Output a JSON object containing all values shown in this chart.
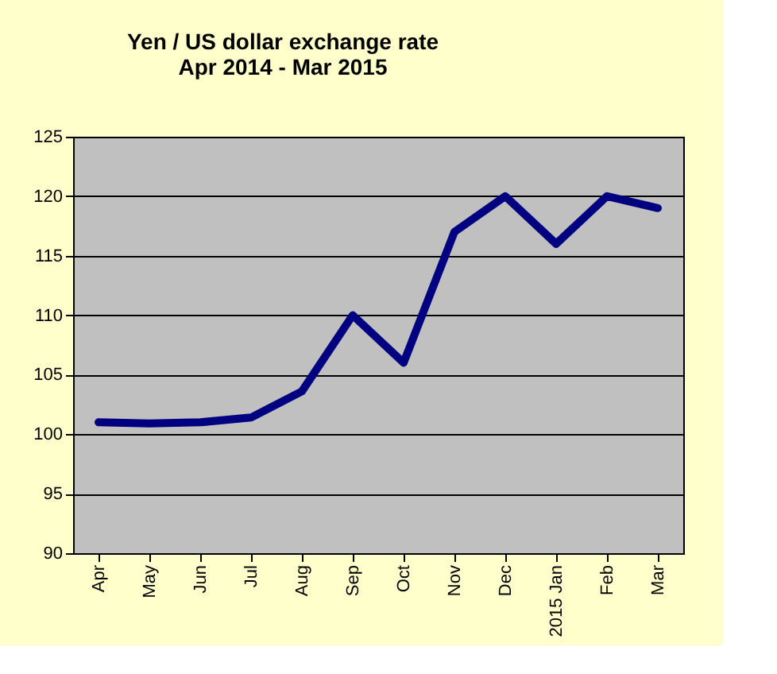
{
  "chart_data": {
    "type": "line",
    "title": "Yen / US dollar exchange rate\nApr 2014 - Mar 2015",
    "categories": [
      "Apr",
      "May",
      "Jun",
      "Jul",
      "Aug",
      "Sep",
      "Oct",
      "Nov",
      "Dec",
      "2015 Jan",
      "Feb",
      "Mar"
    ],
    "series": [
      {
        "color": "#000080",
        "values": [
          101,
          100.9,
          101,
          101.4,
          103.6,
          110,
          106,
          117,
          120,
          116,
          120,
          119
        ]
      }
    ],
    "ylim": [
      90,
      125
    ],
    "yticks": [
      90,
      95,
      100,
      105,
      110,
      115,
      120,
      125
    ],
    "grid": "y",
    "marker": "none",
    "line_style": "solid"
  }
}
